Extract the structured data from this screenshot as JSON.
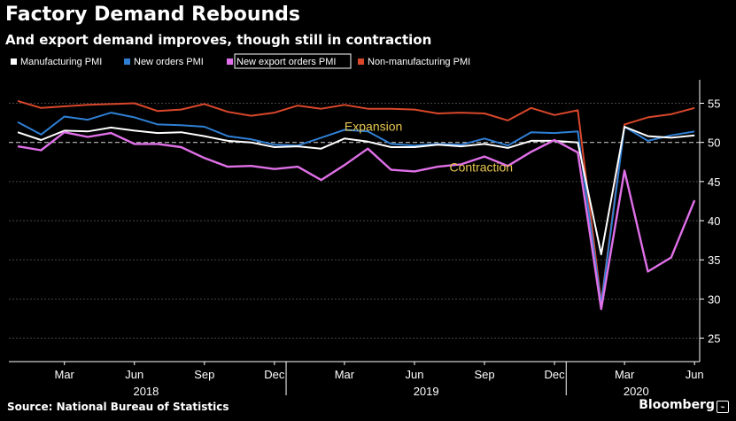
{
  "header": {
    "title": "Factory Demand Rebounds",
    "subtitle": "And export demand improves, though still in contraction"
  },
  "footer": {
    "source": "Source: National Bureau of Statistics",
    "brand": "Bloomberg",
    "brand_icon": "bloomberg-terminal-icon"
  },
  "colors": {
    "background": "#000000",
    "grid": "#444444",
    "manufacturing": "#ffffff",
    "new_orders": "#2f7fd4",
    "new_export_orders": "#e070e8",
    "non_manufacturing": "#d9472b",
    "threshold": "#bbbbbb",
    "annotation": "#e8c650"
  },
  "chart_data": {
    "type": "line",
    "x": [
      "2018-01",
      "2018-02",
      "2018-03",
      "2018-04",
      "2018-05",
      "2018-06",
      "2018-07",
      "2018-08",
      "2018-09",
      "2018-10",
      "2018-11",
      "2018-12",
      "2019-01",
      "2019-02",
      "2019-03",
      "2019-04",
      "2019-05",
      "2019-06",
      "2019-07",
      "2019-08",
      "2019-09",
      "2019-10",
      "2019-11",
      "2019-12",
      "2020-01",
      "2020-02",
      "2020-03",
      "2020-04",
      "2020-05",
      "2020-06"
    ],
    "series": [
      {
        "name": "Manufacturing PMI",
        "color": "#ffffff",
        "values": [
          51.3,
          50.3,
          51.5,
          51.4,
          51.9,
          51.5,
          51.2,
          51.3,
          50.8,
          50.2,
          50.0,
          49.4,
          49.5,
          49.2,
          50.5,
          50.1,
          49.4,
          49.4,
          49.7,
          49.5,
          49.8,
          49.3,
          50.2,
          50.2,
          50.0,
          35.7,
          52.0,
          50.8,
          50.6,
          50.9
        ]
      },
      {
        "name": "New orders PMI",
        "color": "#2f7fd4",
        "values": [
          52.6,
          51.0,
          53.3,
          52.9,
          53.8,
          53.2,
          52.3,
          52.2,
          52.0,
          50.8,
          50.4,
          49.7,
          49.6,
          50.6,
          51.6,
          51.4,
          49.8,
          49.6,
          49.8,
          49.7,
          50.5,
          49.6,
          51.3,
          51.2,
          51.4,
          29.3,
          52.0,
          50.2,
          50.9,
          51.4
        ]
      },
      {
        "name": "New export orders PMI",
        "color": "#e070e8",
        "values": [
          49.5,
          49.0,
          51.3,
          50.7,
          51.2,
          49.8,
          49.8,
          49.4,
          48.0,
          46.9,
          47.0,
          46.6,
          46.9,
          45.2,
          47.1,
          49.2,
          46.5,
          46.3,
          46.9,
          47.2,
          48.2,
          47.0,
          48.8,
          50.3,
          48.7,
          28.7,
          46.4,
          33.5,
          35.3,
          42.6
        ]
      },
      {
        "name": "Non-manufacturing PMI",
        "color": "#d9472b",
        "values": [
          55.3,
          54.4,
          54.6,
          54.8,
          54.9,
          55.0,
          54.0,
          54.2,
          54.9,
          53.9,
          53.4,
          53.8,
          54.7,
          54.3,
          54.8,
          54.3,
          54.3,
          54.2,
          53.7,
          53.8,
          53.7,
          52.8,
          54.4,
          53.5,
          54.1,
          29.6,
          52.3,
          53.2,
          53.6,
          54.4
        ]
      }
    ],
    "ylim": [
      22,
      58
    ],
    "yticks": [
      25,
      30,
      35,
      40,
      45,
      50,
      55
    ],
    "xticks": [
      {
        "label": "Mar",
        "index": 2
      },
      {
        "label": "Jun",
        "index": 5
      },
      {
        "label": "Sep",
        "index": 8
      },
      {
        "label": "Dec",
        "index": 11
      },
      {
        "label": "Mar",
        "index": 14
      },
      {
        "label": "Jun",
        "index": 17
      },
      {
        "label": "Sep",
        "index": 20
      },
      {
        "label": "Dec",
        "index": 23
      },
      {
        "label": "Mar",
        "index": 26
      },
      {
        "label": "Jun",
        "index": 29
      }
    ],
    "years": [
      {
        "label": "2018",
        "start": 0,
        "end": 11
      },
      {
        "label": "2019",
        "start": 12,
        "end": 23
      },
      {
        "label": "2020",
        "start": 24,
        "end": 29
      }
    ],
    "threshold": 50,
    "annotations": [
      {
        "text": "Expansion",
        "x": 14.0,
        "y": 51.5
      },
      {
        "text": "Contraction",
        "x": 18.5,
        "y": 46.3
      }
    ],
    "legend_position": "top-left",
    "grid": true
  }
}
